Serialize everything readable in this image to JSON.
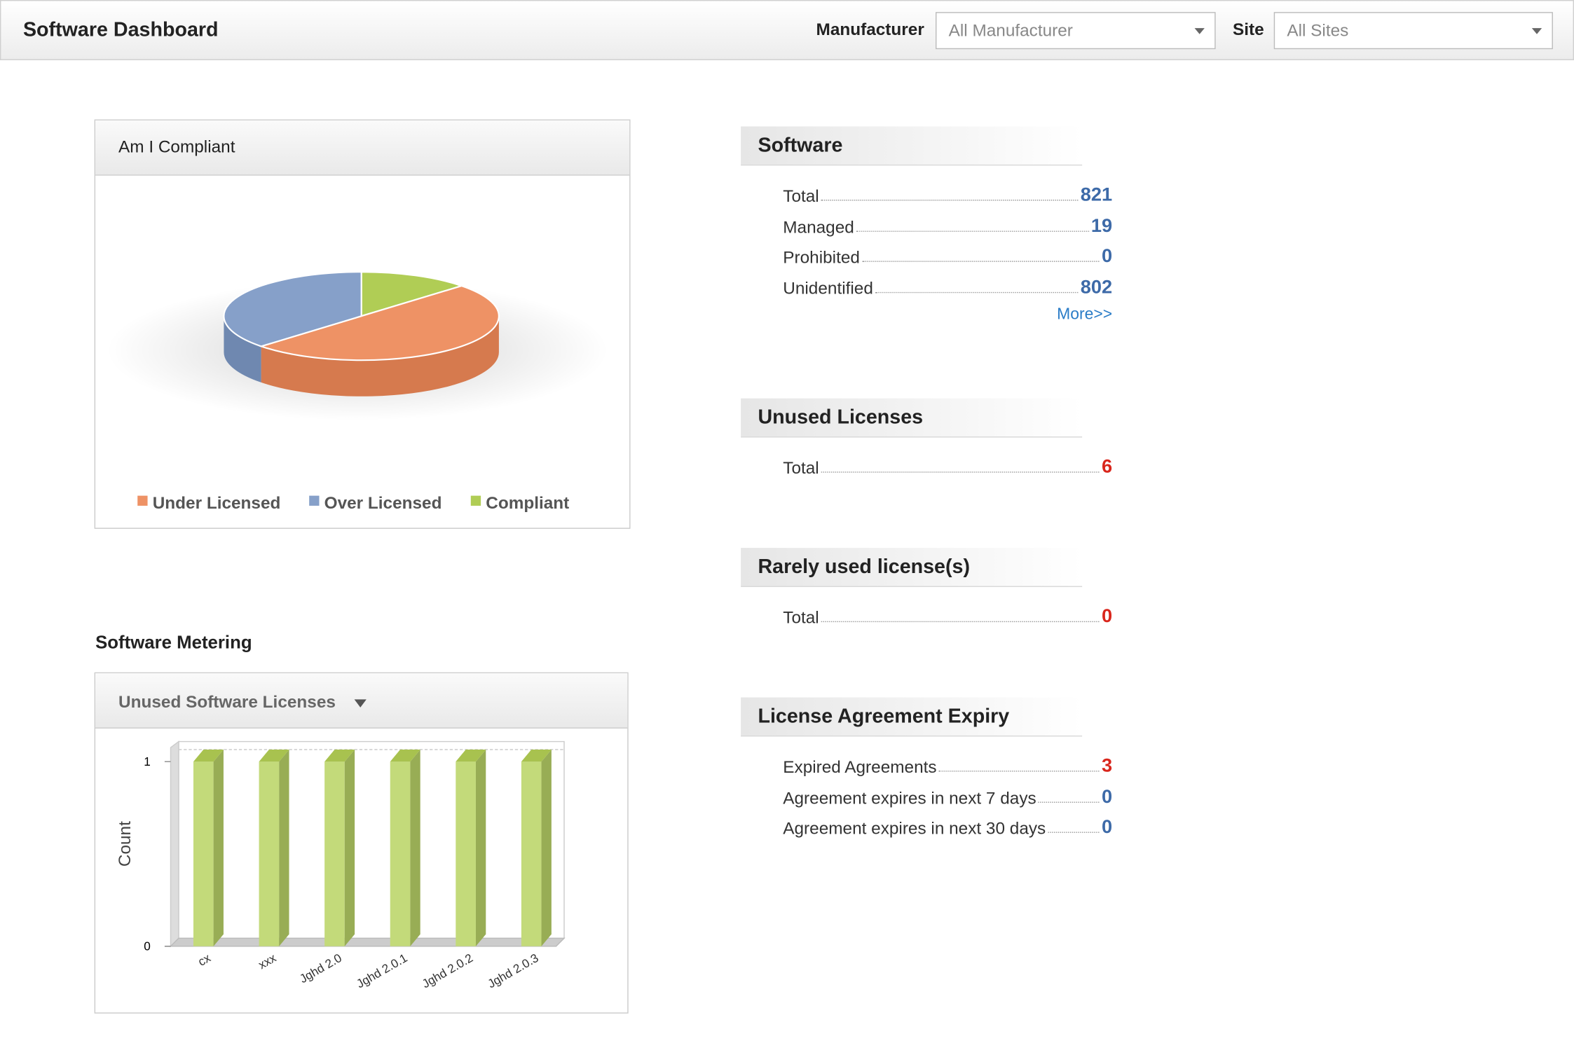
{
  "header": {
    "title": "Software Dashboard",
    "filters": [
      {
        "label": "Manufacturer",
        "value": "All Manufacturer"
      },
      {
        "label": "Site",
        "value": "All Sites"
      }
    ]
  },
  "chart_data": [
    {
      "type": "pie",
      "title": "Am I Compliant",
      "categories": [
        "Compliant",
        "Under Licensed",
        "Over Licensed"
      ],
      "values": [
        13,
        50,
        37
      ],
      "colors": [
        "#b0cd55",
        "#ee9265",
        "#86a0c9"
      ],
      "side_colors": [
        "#93ad3e",
        "#d67a4e",
        "#6f88b0"
      ],
      "legend_order": [
        1,
        2,
        0
      ]
    },
    {
      "type": "bar",
      "title": "Unused Software Licenses",
      "y_label": "Count",
      "categories": [
        "cx",
        "xxx",
        "Jghd 2.0",
        "Jghd 2.0.1",
        "Jghd 2.0.2",
        "Jghd 2.0.3"
      ],
      "values": [
        1,
        1,
        1,
        1,
        1,
        1
      ],
      "color": "#c3da7a",
      "ylim": [
        0,
        1
      ],
      "yticks": [
        0,
        1
      ],
      "grid": true
    }
  ],
  "metering": {
    "heading": "Software Metering"
  },
  "panels": [
    {
      "title": "Software",
      "rows": [
        {
          "label": "Total",
          "value": 821,
          "color": "#3d6aa8"
        },
        {
          "label": "Managed",
          "value": 19,
          "color": "#3d6aa8"
        },
        {
          "label": "Prohibited",
          "value": 0,
          "color": "#3d6aa8"
        },
        {
          "label": "Unidentified",
          "value": 802,
          "color": "#3d6aa8"
        }
      ],
      "link": "More>>"
    },
    {
      "title": "Unused Licenses",
      "rows": [
        {
          "label": "Total",
          "value": 6,
          "color": "#d9261c"
        }
      ]
    },
    {
      "title": "Rarely used license(s)",
      "rows": [
        {
          "label": "Total",
          "value": 0,
          "color": "#d9261c"
        }
      ]
    },
    {
      "title": "License Agreement Expiry",
      "rows": [
        {
          "label": "Expired Agreements",
          "value": 3,
          "color": "#d9261c"
        },
        {
          "label": "Agreement expires in next 7 days",
          "value": 0,
          "color": "#3d6aa8"
        },
        {
          "label": "Agreement expires in next 30 days",
          "value": 0,
          "color": "#3d6aa8"
        }
      ]
    }
  ]
}
